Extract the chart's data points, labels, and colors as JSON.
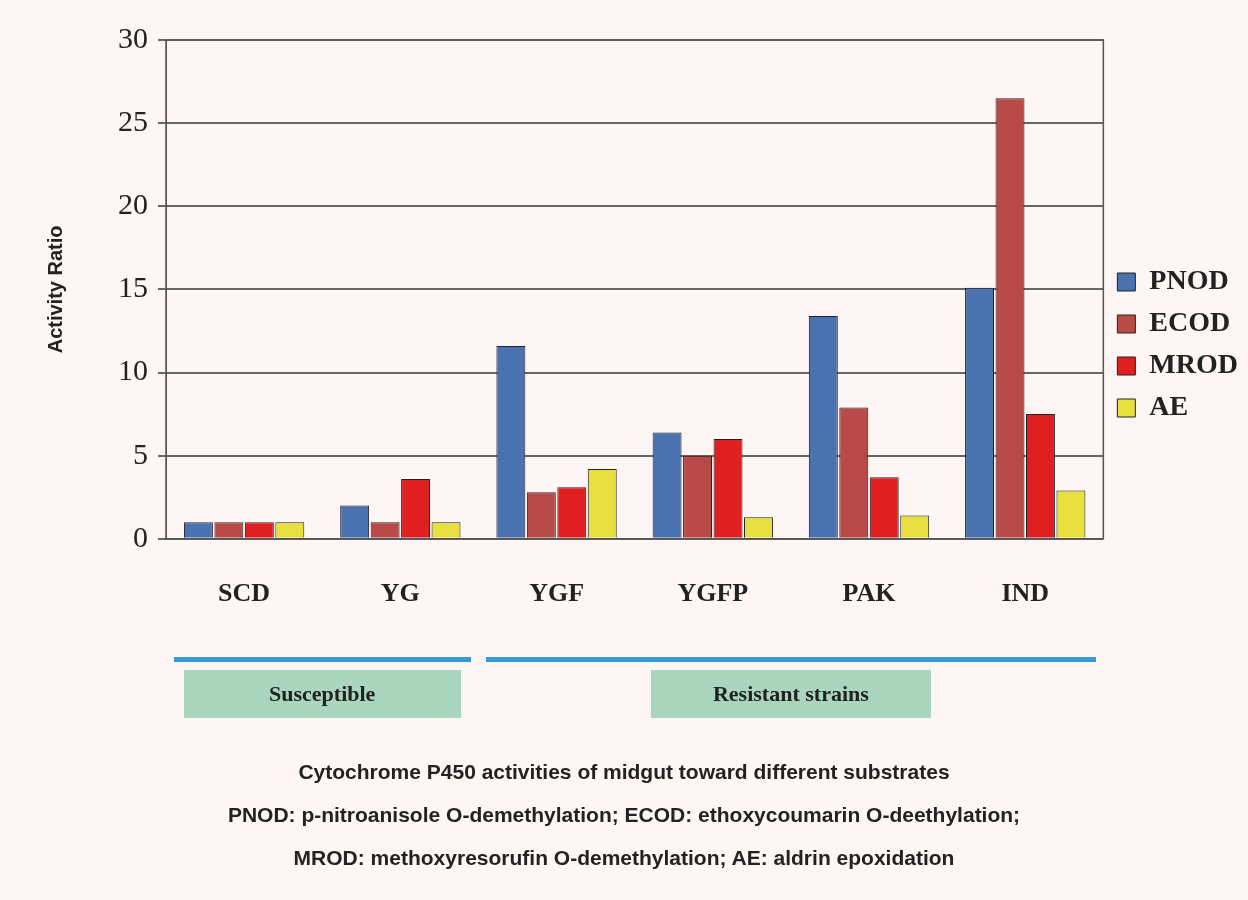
{
  "chart_data": {
    "type": "bar",
    "title": "Cytochrome P450 activities of midgut toward different substrates",
    "ylabel": "Activity Ratio",
    "categories": [
      "SCD",
      "YG",
      "YGF",
      "YGFP",
      "PAK",
      "IND"
    ],
    "series": [
      {
        "name": "PNOD",
        "color": "#4a72b0",
        "values": [
          1.0,
          2.0,
          11.6,
          6.4,
          13.4,
          15.1
        ]
      },
      {
        "name": "ECOD",
        "color": "#b84a48",
        "values": [
          1.0,
          1.0,
          2.8,
          5.0,
          7.9,
          26.5
        ]
      },
      {
        "name": "MROD",
        "color": "#e02020",
        "values": [
          1.0,
          3.6,
          3.1,
          6.0,
          3.7,
          7.5
        ]
      },
      {
        "name": "AE",
        "color": "#e8e040",
        "values": [
          1.0,
          1.0,
          4.2,
          1.3,
          1.4,
          2.9
        ]
      }
    ],
    "ylim": [
      0,
      30
    ],
    "yticks": [
      0,
      5,
      10,
      15,
      20,
      25,
      30
    ],
    "grid": "y",
    "legend": "right",
    "annotations": [
      "Susceptible",
      "Resistant strains",
      "PNOD: p-nitroanisole O-demethylation; ECOD:  ethoxycoumarin O-deethylation;",
      "MROD:  methoxyresorufin O-demethylation; AE: aldrin epoxidation"
    ]
  }
}
